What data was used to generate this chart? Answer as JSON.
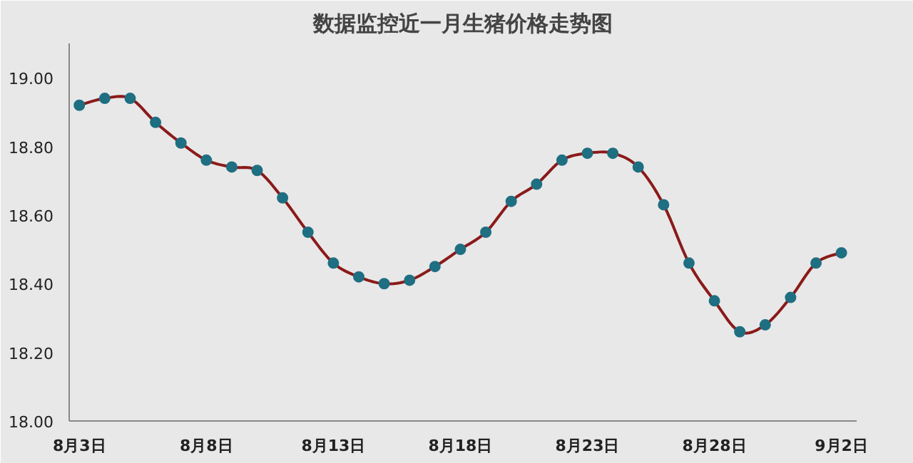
{
  "chart_data": {
    "type": "line",
    "title": "数据监控近一月生猪价格走势图",
    "categories": [
      "8月3日",
      null,
      null,
      null,
      null,
      "8月8日",
      null,
      null,
      null,
      null,
      "8月13日",
      null,
      null,
      null,
      null,
      "8月18日",
      null,
      null,
      null,
      null,
      "8月23日",
      null,
      null,
      null,
      null,
      "8月28日",
      null,
      null,
      null,
      null,
      "9月2日"
    ],
    "series": [
      {
        "color": "#8b1a1a",
        "colors": [
          "#1f6f82",
          "#1f6f82",
          "#1f6f82",
          "#1f6f82",
          "#1f6f82",
          "#1f6f82",
          "#1f6f82",
          "#1f6f82",
          "#1f6f82",
          "#1f6f82",
          "#1f6f82",
          "#1f6f82",
          "#1f6f82",
          "#1f6f82",
          "#1f6f82",
          "#1f6f82",
          "#1f6f82",
          "#1f6f82",
          "#1f6f82",
          "#1f6f82",
          "#1f6f82",
          "#1f6f82",
          "#1f6f82",
          "#1f6f82",
          "#1f6f82",
          "#1f6f82",
          "#1f6f82",
          "#1f6f82",
          "#1f6f82",
          "#1f6f82",
          "#1f6f82"
        ],
        "values": [
          18.92,
          18.94,
          18.94,
          18.87,
          18.81,
          18.76,
          18.74,
          18.73,
          18.65,
          18.55,
          18.46,
          18.42,
          18.4,
          18.41,
          18.45,
          18.5,
          18.55,
          18.64,
          18.69,
          18.76,
          18.78,
          18.78,
          18.74,
          18.63,
          18.46,
          18.35,
          18.26,
          18.28,
          18.36,
          18.46,
          18.49
        ]
      }
    ],
    "ylim": [
      18.0,
      19.1
    ],
    "yticks": [
      {
        "value": 18.0,
        "label": "18.00"
      },
      {
        "value": 18.2,
        "label": "18.20"
      },
      {
        "value": 18.4,
        "label": "18.40"
      },
      {
        "value": 18.6,
        "label": "18.60"
      },
      {
        "value": 18.8,
        "label": "18.80"
      },
      {
        "value": 19.0,
        "label": "19.00"
      }
    ],
    "marker": "circle",
    "line_style": "solid"
  }
}
